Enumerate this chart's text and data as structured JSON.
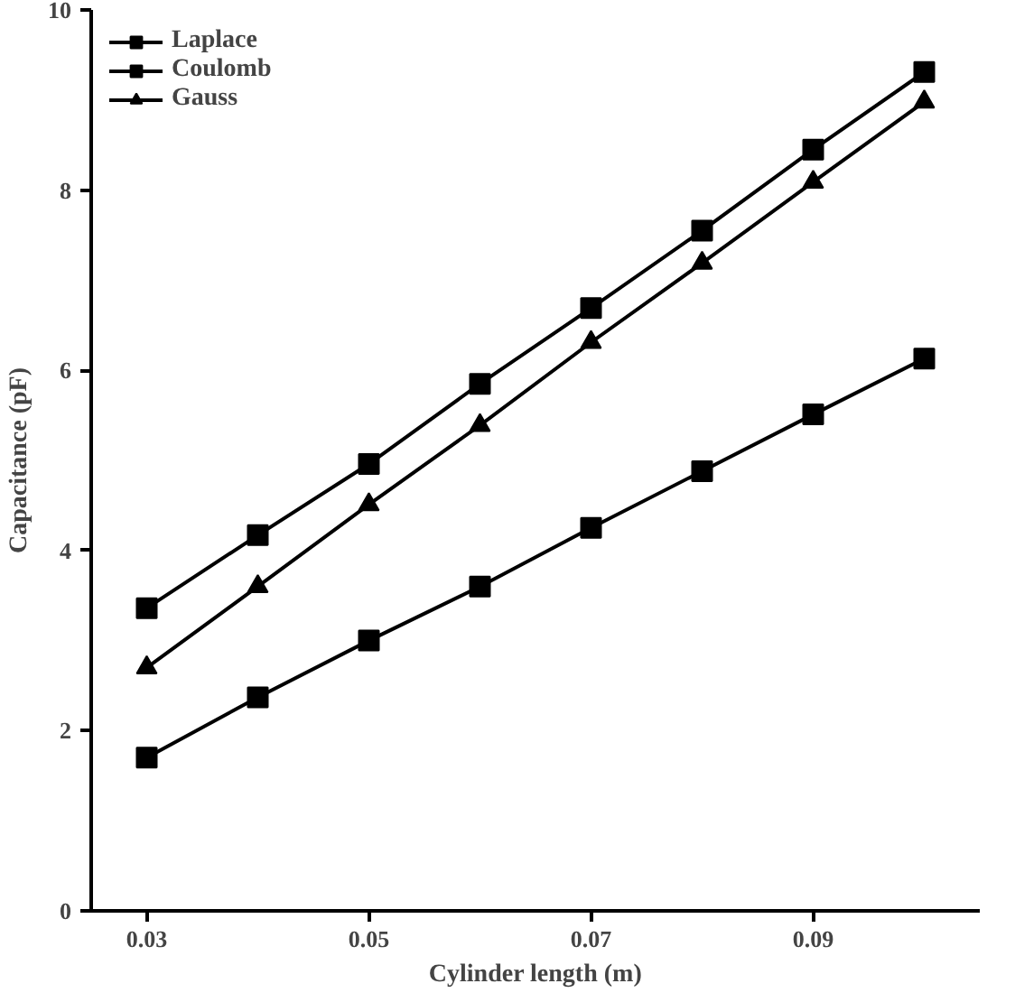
{
  "chart_data": {
    "type": "line",
    "xlabel": "Cylinder length (m)",
    "ylabel": "Capacitance (pF)",
    "x": [
      0.03,
      0.04,
      0.05,
      0.06,
      0.07,
      0.08,
      0.09,
      0.1
    ],
    "series": [
      {
        "name": "Laplace",
        "color": "#000000",
        "marker": "square",
        "values": [
          1.7,
          2.37,
          3.0,
          3.6,
          4.25,
          4.88,
          5.51,
          6.13
        ]
      },
      {
        "name": "Coulomb",
        "color": "#000000",
        "marker": "square",
        "values": [
          3.36,
          4.17,
          4.96,
          5.85,
          6.69,
          7.55,
          8.45,
          9.31
        ]
      },
      {
        "name": "Gauss",
        "color": "#000000",
        "marker": "triangle",
        "values": [
          2.7,
          3.6,
          4.51,
          5.39,
          6.31,
          7.19,
          8.09,
          8.98
        ]
      }
    ],
    "xlim": [
      0.025,
      0.105
    ],
    "xticks": [
      0.03,
      0.05,
      0.07,
      0.09
    ],
    "ylim": [
      0,
      10
    ],
    "yticks": [
      0,
      2,
      4,
      6,
      8,
      10
    ],
    "grid": false,
    "legend": "top left",
    "line_style": "solid"
  }
}
